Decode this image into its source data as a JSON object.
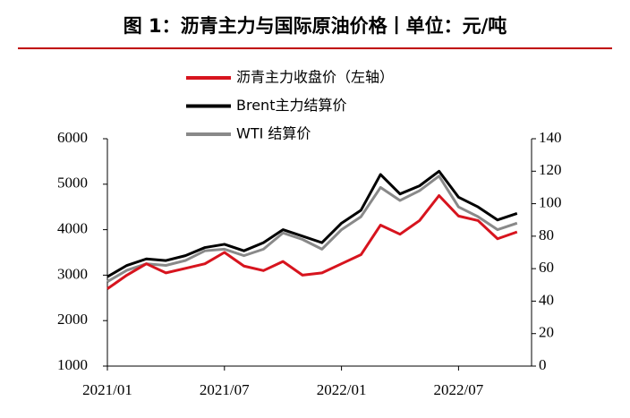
{
  "chart_data": {
    "type": "line",
    "title": "图 1：沥青主力与国际原油价格丨单位：元/吨",
    "x": [
      "2021/01",
      "2021/02",
      "2021/03",
      "2021/04",
      "2021/05",
      "2021/06",
      "2021/07",
      "2021/08",
      "2021/09",
      "2021/10",
      "2021/11",
      "2021/12",
      "2022/01",
      "2022/02",
      "2022/03",
      "2022/04",
      "2022/05",
      "2022/06",
      "2022/07",
      "2022/08",
      "2022/09",
      "2022/10"
    ],
    "xticks": [
      "2021/01",
      "2021/07",
      "2022/01",
      "2022/07"
    ],
    "ylim": [
      1000,
      6000
    ],
    "yticks": [
      1000,
      2000,
      3000,
      4000,
      5000,
      6000
    ],
    "y2lim": [
      0,
      140
    ],
    "y2ticks": [
      0,
      20,
      40,
      60,
      80,
      100,
      120,
      140
    ],
    "series": [
      {
        "name": "沥青主力收盘价（左轴）",
        "color": "#d7141e",
        "values": [
          2700,
          3000,
          3250,
          3050,
          3150,
          3250,
          3500,
          3200,
          3100,
          3300,
          3000,
          3050,
          3250,
          3450,
          4100,
          3900,
          4200,
          4750,
          4300,
          4200,
          3800,
          3950
        ]
      },
      {
        "name": "Brent主力结算价",
        "color": "#000000",
        "axis": "y2",
        "values": [
          55,
          62,
          66,
          65,
          68,
          73,
          75,
          71,
          76,
          84,
          80,
          76,
          88,
          96,
          118,
          106,
          111,
          120,
          104,
          98,
          90,
          94
        ]
      },
      {
        "name": "WTI 结算价",
        "color": "#898989",
        "axis": "y2",
        "values": [
          52,
          59,
          63,
          62,
          65,
          71,
          72,
          68,
          72,
          82,
          78,
          72,
          84,
          92,
          110,
          102,
          108,
          117,
          98,
          92,
          84,
          88
        ]
      }
    ]
  }
}
